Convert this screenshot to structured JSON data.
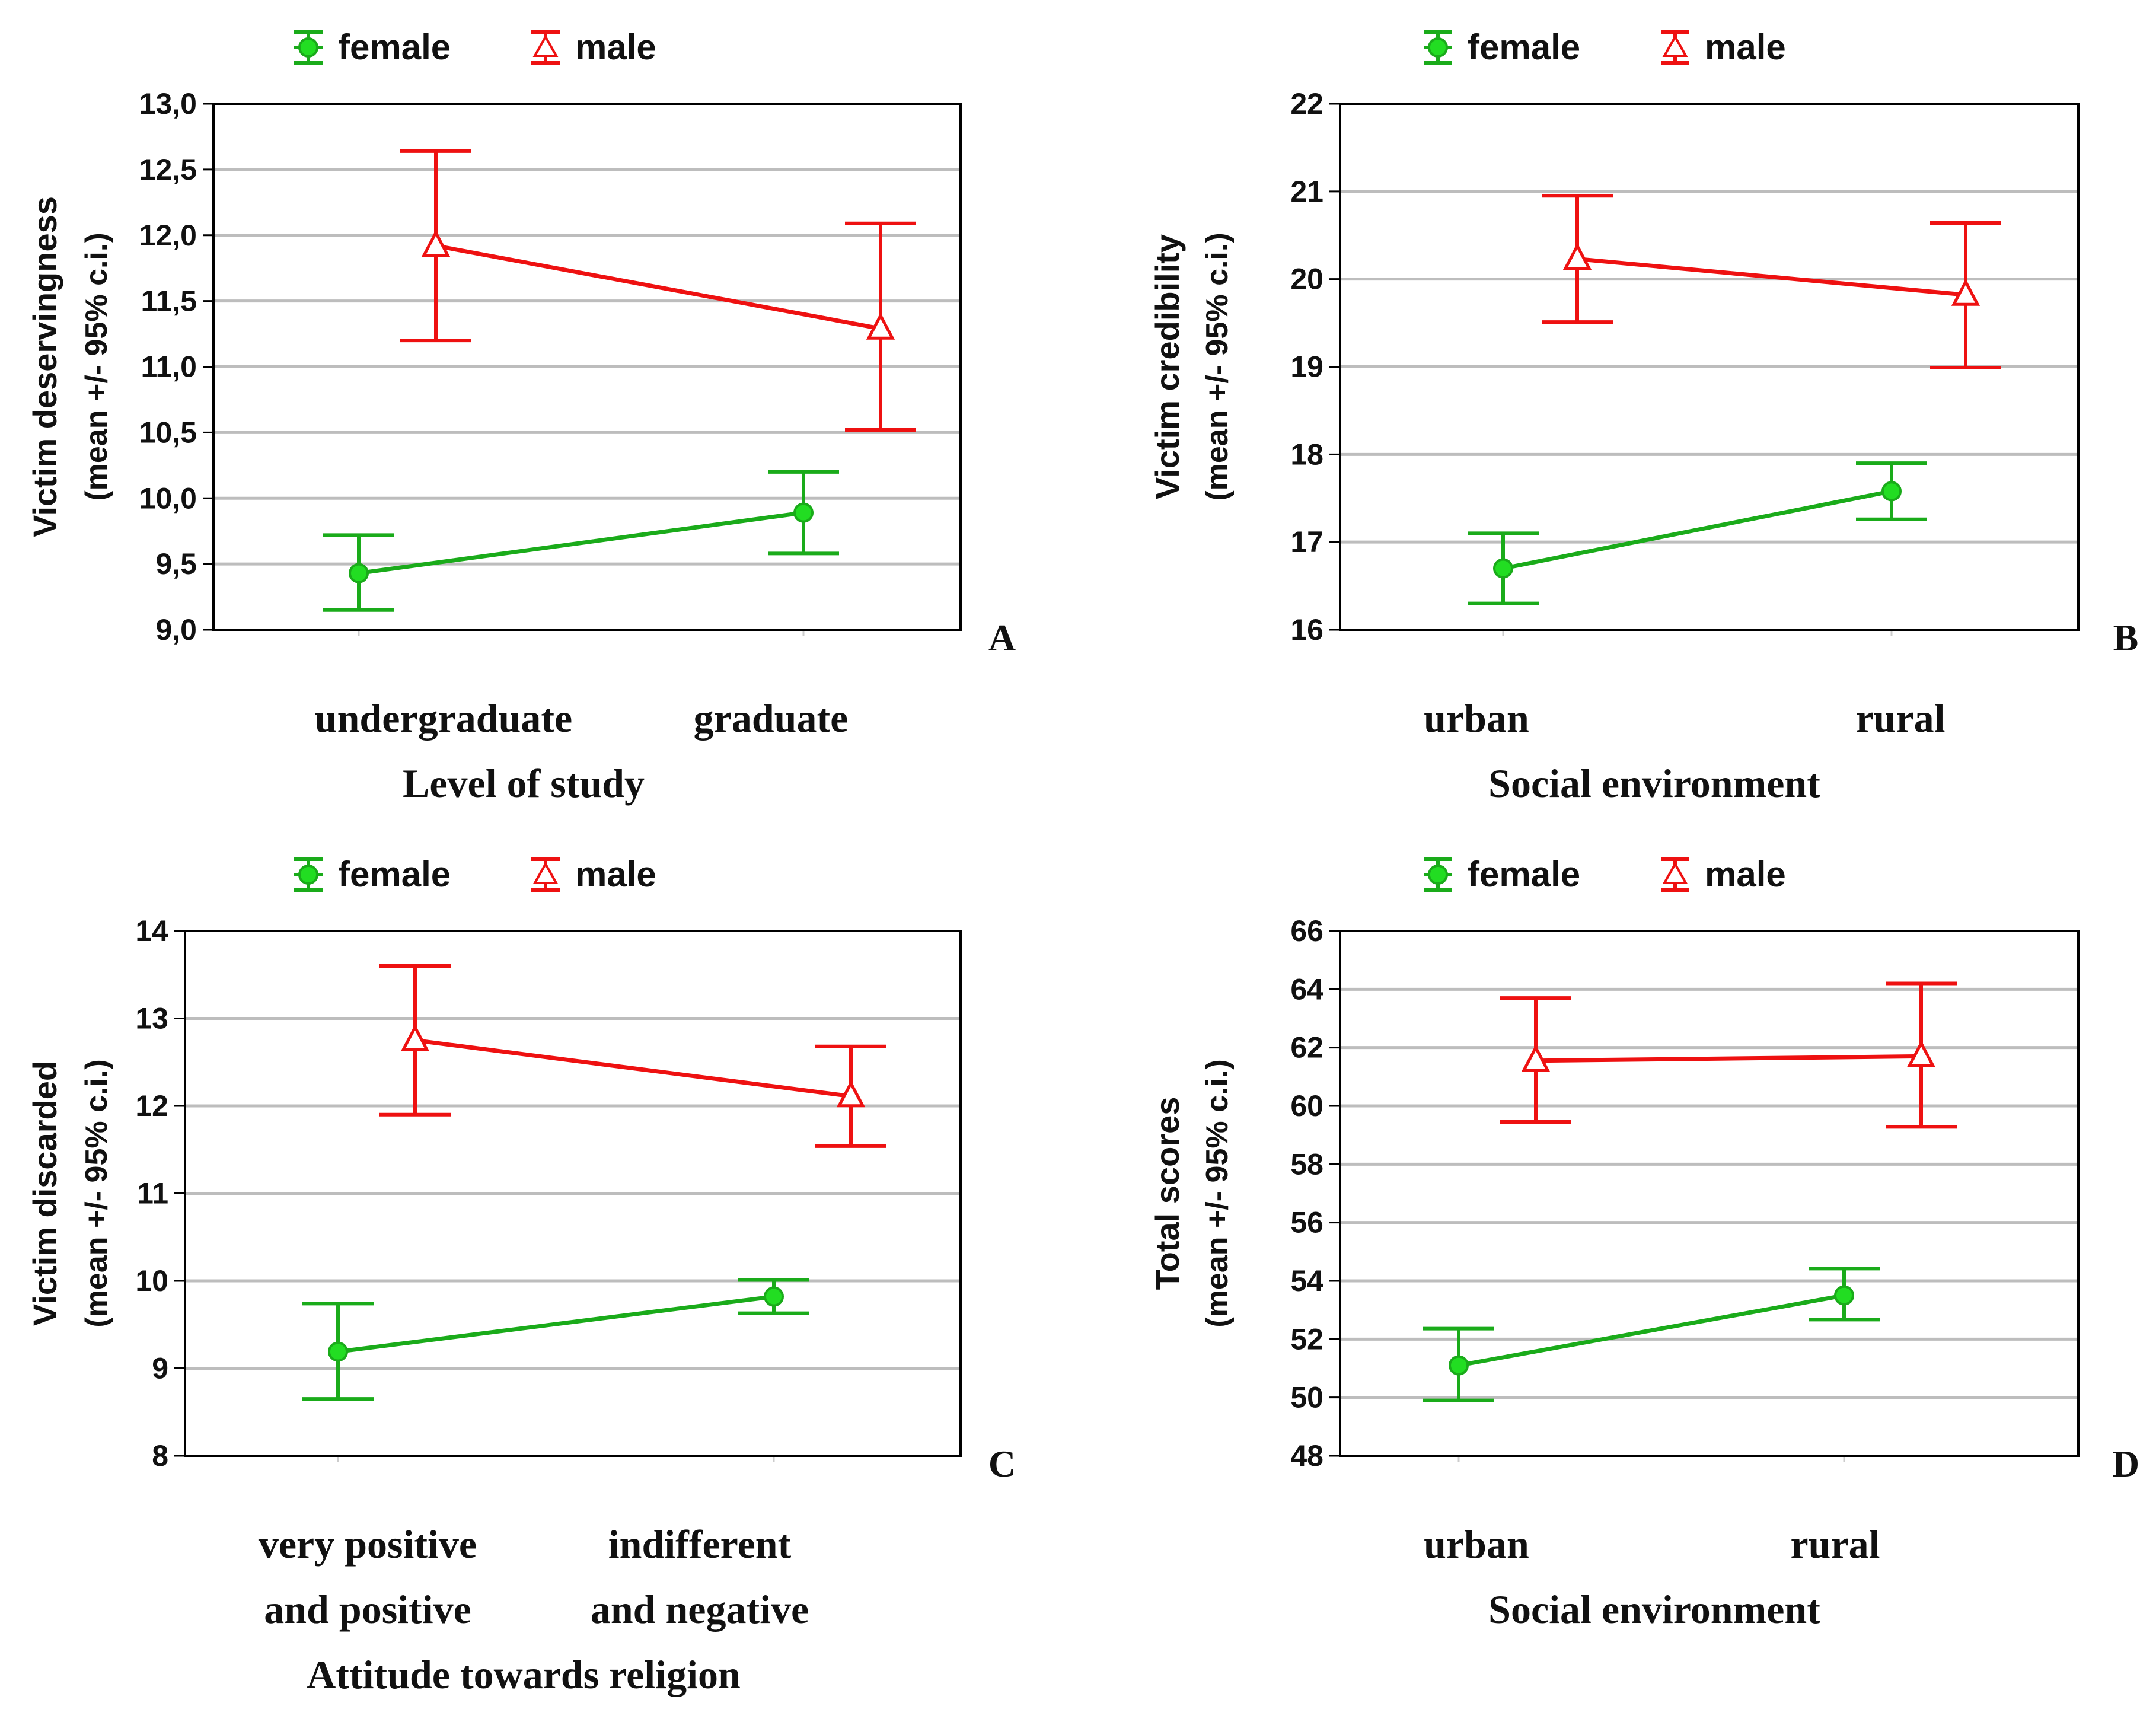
{
  "colors": {
    "female": "#1aab1a",
    "female_marker": "#22dd22",
    "male": "#ee1111",
    "grid": "#bdbdbd",
    "axis": "#000000"
  },
  "legend": {
    "female": "female",
    "male": "male"
  },
  "chart_data": [
    {
      "panel": "A",
      "type": "line",
      "error_bars": "95% c.i.",
      "ylabel_line1": "Victim deservingness",
      "ylabel_line2": "(mean +/- 95% c.i.)",
      "xlabel": "Level of study",
      "categories": [
        [
          "undergraduate"
        ],
        [
          "graduate"
        ]
      ],
      "ylim": [
        9.0,
        13.0
      ],
      "yticks": [
        "9,0",
        "9,5",
        "10,0",
        "10,5",
        "11,0",
        "11,5",
        "12,0",
        "12,5",
        "13,0"
      ],
      "series": [
        {
          "name": "female",
          "values": [
            9.43,
            9.89
          ],
          "lower": [
            9.15,
            9.58
          ],
          "upper": [
            9.72,
            10.2
          ]
        },
        {
          "name": "male",
          "values": [
            11.92,
            11.29
          ],
          "lower": [
            11.2,
            10.52
          ],
          "upper": [
            12.64,
            12.09
          ]
        }
      ]
    },
    {
      "panel": "B",
      "type": "line",
      "error_bars": "95% c.i.",
      "ylabel_line1": "Victim credibility",
      "ylabel_line2": "(mean +/- 95% c.i.)",
      "xlabel": "Social environment",
      "categories": [
        [
          "urban"
        ],
        [
          "rural"
        ]
      ],
      "ylim": [
        16,
        22
      ],
      "yticks": [
        "16",
        "17",
        "18",
        "19",
        "20",
        "21",
        "22"
      ],
      "series": [
        {
          "name": "female",
          "values": [
            16.7,
            17.58
          ],
          "lower": [
            16.3,
            17.26
          ],
          "upper": [
            17.1,
            17.9
          ]
        },
        {
          "name": "male",
          "values": [
            20.23,
            19.82
          ],
          "lower": [
            19.51,
            18.99
          ],
          "upper": [
            20.95,
            20.64
          ]
        }
      ]
    },
    {
      "panel": "C",
      "type": "line",
      "error_bars": "95% c.i.",
      "ylabel_line1": "Victim discarded",
      "ylabel_line2": "(mean +/- 95% c.i.)",
      "xlabel": "Attitude towards religion",
      "categories": [
        [
          "very positive",
          "and positive"
        ],
        [
          "indifferent",
          "and negative"
        ]
      ],
      "ylim": [
        8,
        14
      ],
      "yticks": [
        "8",
        "9",
        "10",
        "11",
        "12",
        "13",
        "14"
      ],
      "series": [
        {
          "name": "female",
          "values": [
            9.19,
            9.82
          ],
          "lower": [
            8.65,
            9.63
          ],
          "upper": [
            9.74,
            10.01
          ]
        },
        {
          "name": "male",
          "values": [
            12.75,
            12.11
          ],
          "lower": [
            11.9,
            11.54
          ],
          "upper": [
            13.6,
            12.68
          ]
        }
      ]
    },
    {
      "panel": "D",
      "type": "line",
      "error_bars": "95% c.i.",
      "ylabel_line1": "Total scores",
      "ylabel_line2": "(mean +/- 95% c.i.)",
      "xlabel": "Social environment",
      "categories": [
        [
          "urban"
        ],
        [
          "rural"
        ]
      ],
      "ylim": [
        48,
        66
      ],
      "yticks": [
        "48",
        "50",
        "52",
        "54",
        "56",
        "58",
        "60",
        "62",
        "64",
        "66"
      ],
      "series": [
        {
          "name": "female",
          "values": [
            51.1,
            53.5
          ],
          "lower": [
            49.9,
            52.67
          ],
          "upper": [
            52.36,
            54.42
          ]
        },
        {
          "name": "male",
          "values": [
            61.55,
            61.7
          ],
          "lower": [
            59.45,
            59.28
          ],
          "upper": [
            63.7,
            64.2
          ]
        }
      ]
    }
  ]
}
